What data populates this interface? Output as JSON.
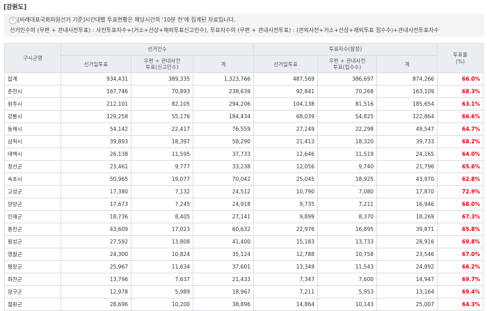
{
  "region_title": "[강원도]",
  "notes": {
    "line1": "[비례대표국회의원선거 기준]시간대별 투표현황은 해당시간의 '10분 전'에 집계된 자료입니다.",
    "line2": "선거인수의 (우편 + 관내사전투표) : 사전투표자수+(거소+선상+재외투표신고인수), 투표자수의 (우편 + 관내사전투표) : (관외사전+거소+선상+재외투표 접수수)+관내사전투표자수"
  },
  "table": {
    "headers": {
      "district": "구시군명",
      "electors_group": "선거인수",
      "voters_group": "투표자수(잠정)",
      "rate": "투표율\n(%)",
      "electors_day": "선거일투표",
      "electors_advance": "우편 + 관내사전\n투표(신고인수)",
      "electors_total": "계",
      "voters_day": "선거일투표",
      "voters_advance": "우편 + 관내사전\n투표(접수수)",
      "voters_total": "계"
    },
    "rows": [
      [
        "합계",
        "934,431",
        "389,335",
        "1,323,766",
        "487,569",
        "386,697",
        "874,266",
        "66.0%"
      ],
      [
        "춘천시",
        "167,746",
        "70,893",
        "238,639",
        "92,841",
        "70,268",
        "163,109",
        "68.3%"
      ],
      [
        "원주시",
        "212,101",
        "82,105",
        "294,206",
        "104,138",
        "81,516",
        "185,654",
        "63.1%"
      ],
      [
        "강릉시",
        "129,258",
        "55,176",
        "184,434",
        "68,039",
        "54,825",
        "122,864",
        "66.6%"
      ],
      [
        "동해시",
        "54,142",
        "22,417",
        "76,559",
        "27,249",
        "22,298",
        "49,547",
        "64.7%"
      ],
      [
        "삼척시",
        "39,893",
        "18,397",
        "58,290",
        "21,413",
        "18,320",
        "39,733",
        "68.2%"
      ],
      [
        "태백시",
        "26,138",
        "11,595",
        "37,733",
        "12,646",
        "11,519",
        "24,165",
        "64.0%"
      ],
      [
        "정선군",
        "23,461",
        "9,777",
        "33,238",
        "12,056",
        "9,740",
        "21,796",
        "65.6%"
      ],
      [
        "속초시",
        "50,965",
        "19,077",
        "70,042",
        "25,045",
        "18,925",
        "43,970",
        "62.8%"
      ],
      [
        "고성군",
        "17,380",
        "7,132",
        "24,512",
        "10,790",
        "7,080",
        "17,870",
        "72.9%"
      ],
      [
        "양양군",
        "17,673",
        "7,245",
        "24,918",
        "9,735",
        "7,211",
        "16,946",
        "68.0%"
      ],
      [
        "인제군",
        "18,736",
        "8,405",
        "27,141",
        "9,899",
        "8,370",
        "18,269",
        "67.3%"
      ],
      [
        "홍천군",
        "43,609",
        "17,023",
        "60,632",
        "22,976",
        "16,895",
        "39,871",
        "65.8%"
      ],
      [
        "횡성군",
        "27,592",
        "13,808",
        "41,400",
        "15,183",
        "13,733",
        "28,916",
        "69.8%"
      ],
      [
        "영월군",
        "24,300",
        "10,824",
        "35,124",
        "12,788",
        "10,758",
        "23,546",
        "67.0%"
      ],
      [
        "평창군",
        "25,967",
        "11,634",
        "37,601",
        "13,349",
        "11,543",
        "24,892",
        "66.2%"
      ],
      [
        "화천군",
        "13,796",
        "7,637",
        "21,433",
        "7,347",
        "7,600",
        "14,947",
        "69.7%"
      ],
      [
        "양구군",
        "12,978",
        "5,989",
        "18,967",
        "7,211",
        "5,953",
        "13,164",
        "69.4%"
      ],
      [
        "철원군",
        "28,696",
        "10,200",
        "38,896",
        "14,864",
        "10,143",
        "25,007",
        "64.3%"
      ]
    ]
  }
}
